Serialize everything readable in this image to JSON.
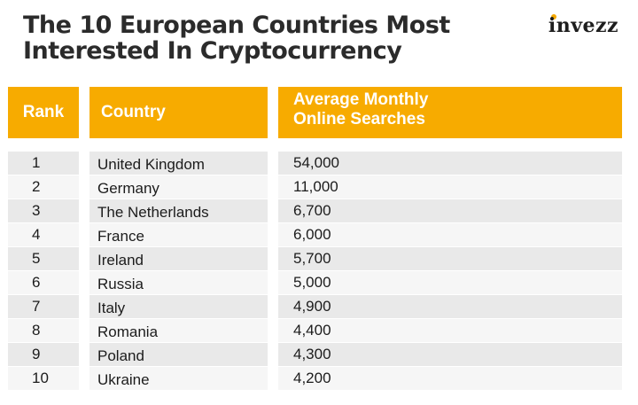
{
  "title": {
    "line1": "The 10 European Countries Most",
    "line2": "Interested In Cryptocurrency"
  },
  "logo": {
    "text": "invezz",
    "accent_color": "#f5a800"
  },
  "colors": {
    "header_bg": "#f7ab00",
    "row_shaded": "#e9e9e9",
    "row_light": "#f6f6f6"
  },
  "chart_data": {
    "type": "table",
    "columns": [
      "Rank",
      "Country",
      "Average Monthly Online Searches"
    ],
    "header": {
      "rank": "Rank",
      "country": "Country",
      "searches_line1": "Average Monthly",
      "searches_line2": "Online Searches"
    },
    "rows": [
      {
        "rank": "1",
        "country": "United Kingdom",
        "searches": "54,000"
      },
      {
        "rank": "2",
        "country": "Germany",
        "searches": "11,000"
      },
      {
        "rank": "3",
        "country": "The Netherlands",
        "searches": "6,700"
      },
      {
        "rank": "4",
        "country": "France",
        "searches": "6,000"
      },
      {
        "rank": "5",
        "country": "Ireland",
        "searches": "5,700"
      },
      {
        "rank": "6",
        "country": "Russia",
        "searches": "5,000"
      },
      {
        "rank": "7",
        "country": "Italy",
        "searches": "4,900"
      },
      {
        "rank": "8",
        "country": "Romania",
        "searches": "4,400"
      },
      {
        "rank": "9",
        "country": "Poland",
        "searches": "4,300"
      },
      {
        "rank": "10",
        "country": "Ukraine",
        "searches": "4,200"
      }
    ]
  }
}
